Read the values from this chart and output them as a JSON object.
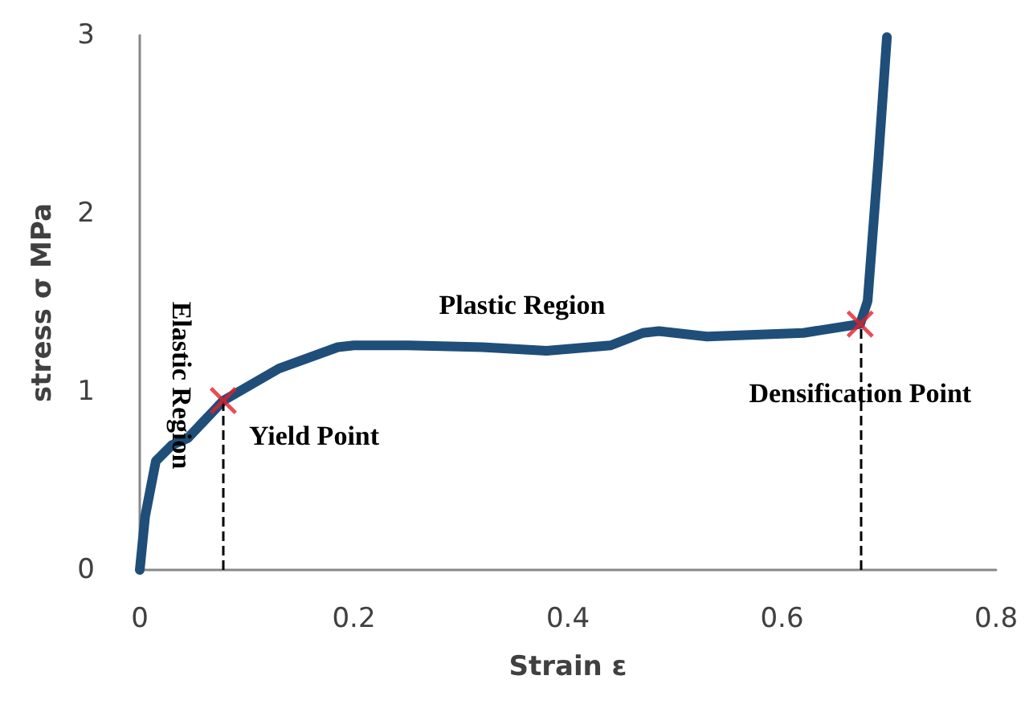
{
  "chart_data": {
    "type": "line",
    "xlabel": "Strain ε",
    "ylabel": "stress σ MPa",
    "xlim": [
      0,
      0.8
    ],
    "xticks": [
      0,
      0.2,
      0.4,
      0.6,
      0.8
    ],
    "ylim": [
      0,
      3
    ],
    "yticks": [
      0,
      1,
      2,
      3
    ],
    "grid": false,
    "line_style": "solid",
    "series": [
      {
        "color": "#1f4e79",
        "marker": "none",
        "x": [
          0,
          0.005,
          0.015,
          0.03,
          0.045,
          0.078,
          0.13,
          0.185,
          0.2,
          0.25,
          0.32,
          0.38,
          0.44,
          0.47,
          0.485,
          0.53,
          0.62,
          0.673,
          0.68,
          0.69,
          0.698
        ],
        "values": [
          0,
          0.3,
          0.61,
          0.7,
          0.74,
          0.95,
          1.13,
          1.25,
          1.26,
          1.26,
          1.25,
          1.23,
          1.26,
          1.33,
          1.34,
          1.31,
          1.33,
          1.38,
          1.51,
          2.3,
          2.99
        ]
      },
      {
        "type": "scatter",
        "color": "#e0202c",
        "marker": "cross",
        "x": [
          0.078,
          0.673
        ],
        "values": [
          0.95,
          1.38
        ]
      }
    ],
    "ref_lines": [
      {
        "axis": "x",
        "value": 0.078,
        "color": "#000000",
        "line_style": "dashed"
      },
      {
        "axis": "x",
        "value": 0.673,
        "color": "#000000",
        "line_style": "dashed"
      }
    ],
    "annotations": [
      "Elastic Region",
      "Plastic Region",
      {
        "text": "Yield Point",
        "x": 0.078,
        "y": 0.95
      },
      {
        "text": "Densification Point",
        "x": 0.673,
        "y": 1.38
      }
    ]
  }
}
